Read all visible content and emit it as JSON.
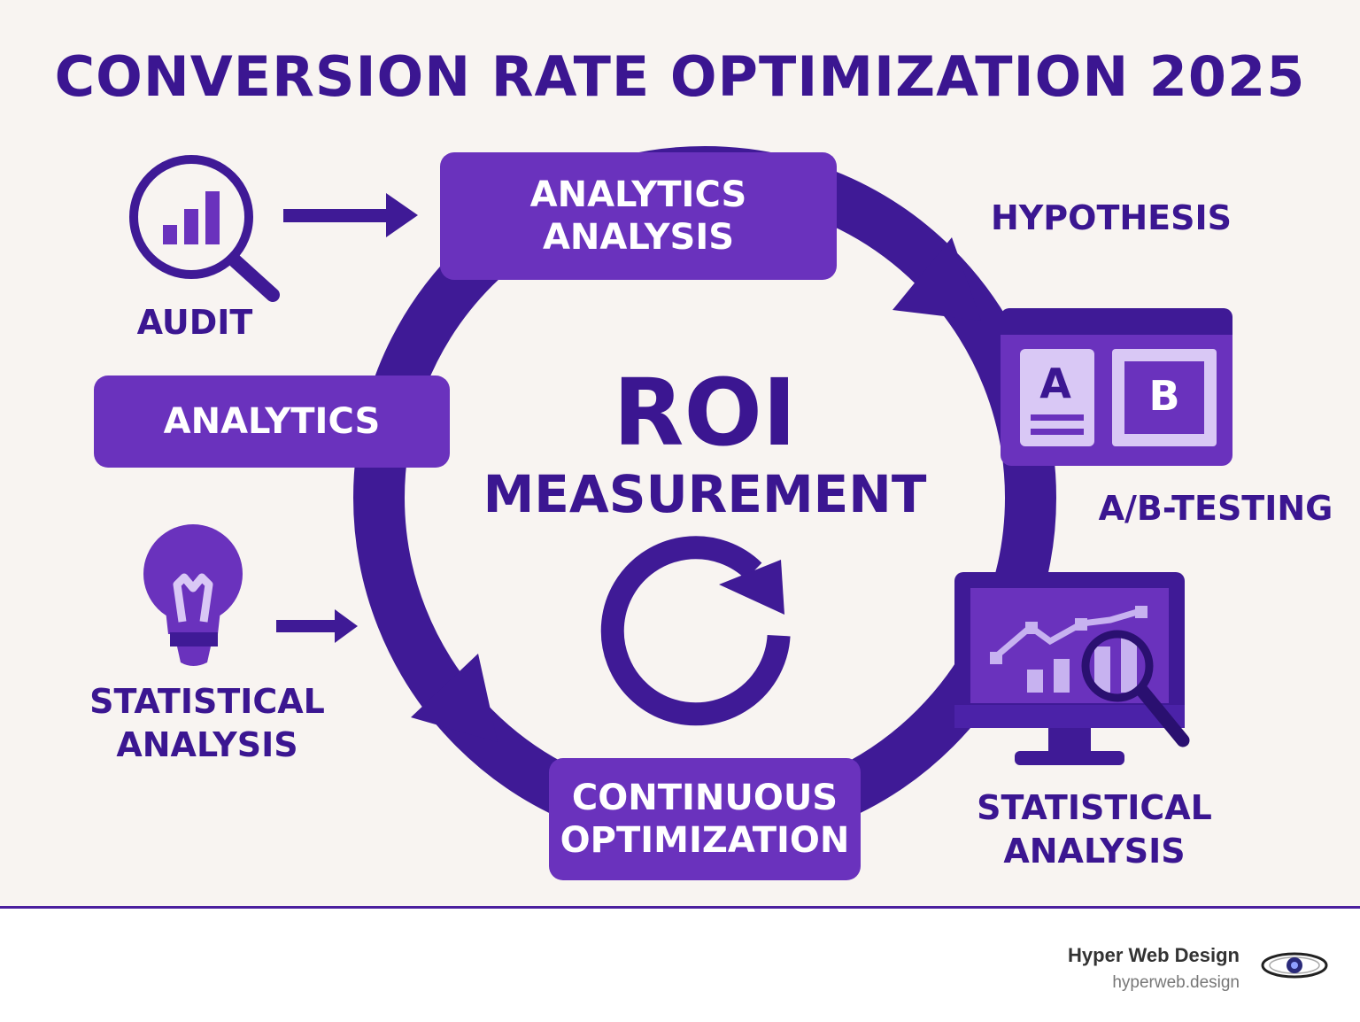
{
  "title": "CONVERSION RATE OPTIMIZATION 2025",
  "center": {
    "line1": "ROI",
    "line2": "MEASUREMENT"
  },
  "boxes": {
    "analytics_analysis": "ANALYTICS\nANALYSIS",
    "analytics": "ANALYTICS",
    "continuous_optimization": "CONTINUOUS\nOPTIMIZATION"
  },
  "labels": {
    "audit": "AUDIT",
    "hypothesis": "HYPOTHESIS",
    "ab_testing": "A/B-TESTING",
    "statistical_analysis_left": "STATISTICAL\nANALYSIS",
    "statistical_analysis_right": "STATISTICAL\nANALYSIS"
  },
  "ab_icon": {
    "a": "A",
    "b": "B"
  },
  "footer": {
    "company": "Hyper Web Design",
    "url": "hyperweb.design"
  },
  "colors": {
    "primary": "#3b1691",
    "box": "#6a32bd",
    "background": "#f8f4f1",
    "light": "#d9c8f5"
  }
}
